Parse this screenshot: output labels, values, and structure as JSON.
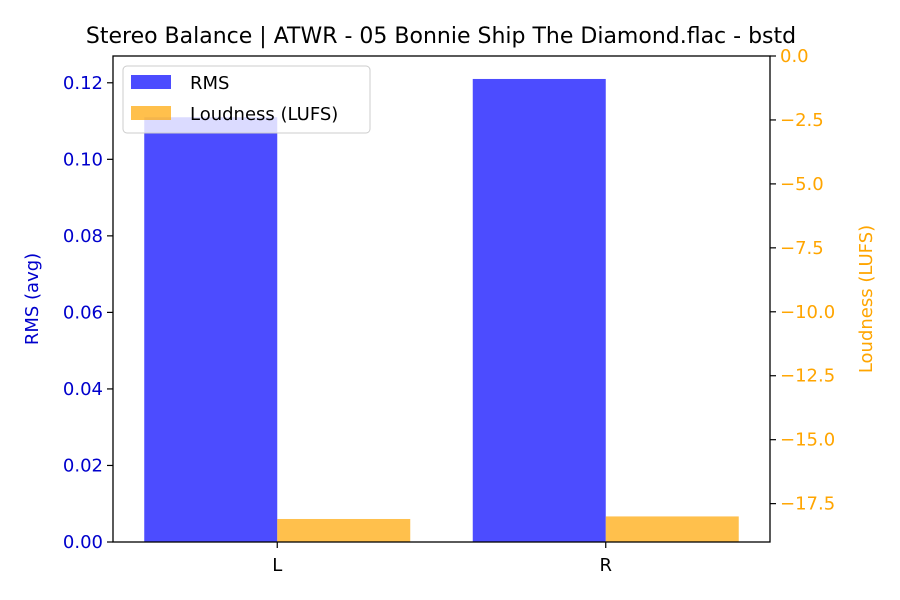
{
  "chart_data": {
    "type": "bar",
    "title": "Stereo Balance | ATWR - 05 Bonnie Ship The Diamond.flac - bstd",
    "categories": [
      "L",
      "R"
    ],
    "left_axis": {
      "label": "RMS (avg)",
      "color": "#0000cc",
      "ylim": [
        0,
        0.127
      ],
      "ticks": [
        0.0,
        0.02,
        0.04,
        0.06,
        0.08,
        0.1,
        0.12
      ],
      "tick_labels": [
        "0.00",
        "0.02",
        "0.04",
        "0.06",
        "0.08",
        "0.10",
        "0.12"
      ]
    },
    "right_axis": {
      "label": "Loudness (LUFS)",
      "color": "#ffa500",
      "ylim": [
        -19.0,
        0.0
      ],
      "ticks": [
        0.0,
        -2.5,
        -5.0,
        -7.5,
        -10.0,
        -12.5,
        -15.0,
        -17.5
      ],
      "tick_labels": [
        "0.0",
        "−2.5",
        "−5.0",
        "−7.5",
        "−10.0",
        "−12.5",
        "−15.0",
        "−17.5"
      ]
    },
    "series": [
      {
        "name": "RMS",
        "axis": "left",
        "color": "#0000ff",
        "opacity": 0.7,
        "values": [
          0.111,
          0.121
        ]
      },
      {
        "name": "Loudness (LUFS)",
        "axis": "right",
        "color": "#ffa500",
        "opacity": 0.7,
        "values": [
          -18.1,
          -18.0
        ]
      }
    ],
    "legend": {
      "placement": "upper-left",
      "entries": [
        "RMS",
        "Loudness (LUFS)"
      ]
    },
    "grid": false
  }
}
